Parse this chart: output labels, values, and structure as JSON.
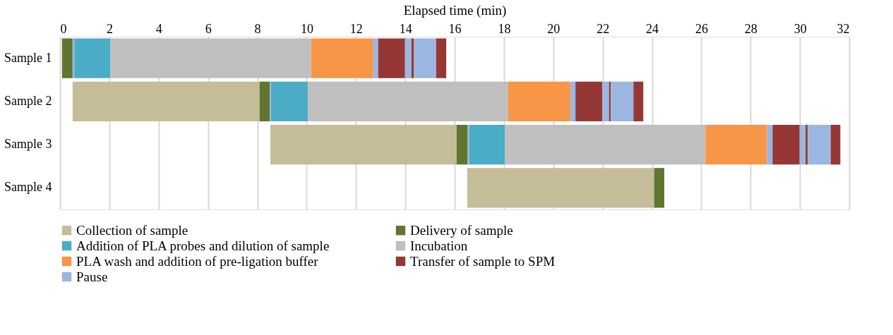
{
  "chart_data": {
    "type": "bar",
    "orientation": "horizontal",
    "xlabel": "Elapsed time (min)",
    "categories": [
      "Sample 1",
      "Sample 2",
      "Sample 3",
      "Sample 4"
    ],
    "series": [
      {
        "name": "Collection of sample",
        "color": "#c4bd97",
        "base": [
          null,
          0.51,
          8.53,
          16.51
        ],
        "values": [
          null,
          7.58,
          7.55,
          7.58
        ]
      },
      {
        "name": "Delivery of sample",
        "color": "#5f7530",
        "base": [
          0.08,
          8.09,
          16.08,
          24.09
        ],
        "values": [
          0.43,
          0.41,
          0.45,
          0.41
        ]
      },
      {
        "color": "#9bb7e0",
        "base": [
          0.51,
          8.5,
          16.53,
          null
        ],
        "values": [
          0.07,
          0.06,
          0.06,
          null
        ]
      },
      {
        "name": "Addition of PLA probes and dilution of sample",
        "color": "#4bacc6",
        "base": [
          0.58,
          8.56,
          16.59,
          null
        ],
        "values": [
          1.46,
          1.49,
          1.45,
          null
        ]
      },
      {
        "name": "Incubation",
        "color": "#bfbfbf",
        "base": [
          2.04,
          10.05,
          18.04,
          null
        ],
        "values": [
          8.14,
          8.12,
          8.13,
          null
        ]
      },
      {
        "name": "PLA wash and addition of pre-ligation buffer",
        "color": "#f79646",
        "base": [
          10.18,
          18.17,
          26.17,
          null
        ],
        "values": [
          2.52,
          2.52,
          2.5,
          null
        ]
      },
      {
        "color": "#9bb7e0",
        "base": [
          12.7,
          20.69,
          28.67,
          null
        ],
        "values": [
          0.2,
          0.21,
          0.22,
          null
        ]
      },
      {
        "name": "Transfer of sample to SPM",
        "color": "#953735",
        "base": [
          12.9,
          20.9,
          28.89,
          null
        ],
        "values": [
          1.09,
          1.09,
          1.1,
          null
        ]
      },
      {
        "color": "#9bb7e0",
        "base": [
          13.99,
          21.99,
          29.99,
          null
        ],
        "values": [
          0.26,
          0.27,
          0.24,
          null
        ]
      },
      {
        "color": "#953735",
        "base": [
          14.25,
          22.26,
          30.23,
          null
        ],
        "values": [
          0.09,
          0.07,
          0.09,
          null
        ]
      },
      {
        "name": "Pause",
        "color": "#9bb7e0",
        "base": [
          14.34,
          22.33,
          30.32,
          null
        ],
        "values": [
          0.91,
          0.92,
          0.93,
          null
        ]
      },
      {
        "color": "#953735",
        "base": [
          15.25,
          23.25,
          31.25,
          null
        ],
        "values": [
          0.41,
          0.4,
          0.39,
          null
        ]
      }
    ],
    "xlim": [
      0,
      32
    ],
    "xticks": [
      0,
      2,
      4,
      6,
      8,
      10,
      12,
      14,
      16,
      18,
      20,
      22,
      24,
      26,
      28,
      30,
      32
    ],
    "grid": "x",
    "legend": "bottom"
  }
}
